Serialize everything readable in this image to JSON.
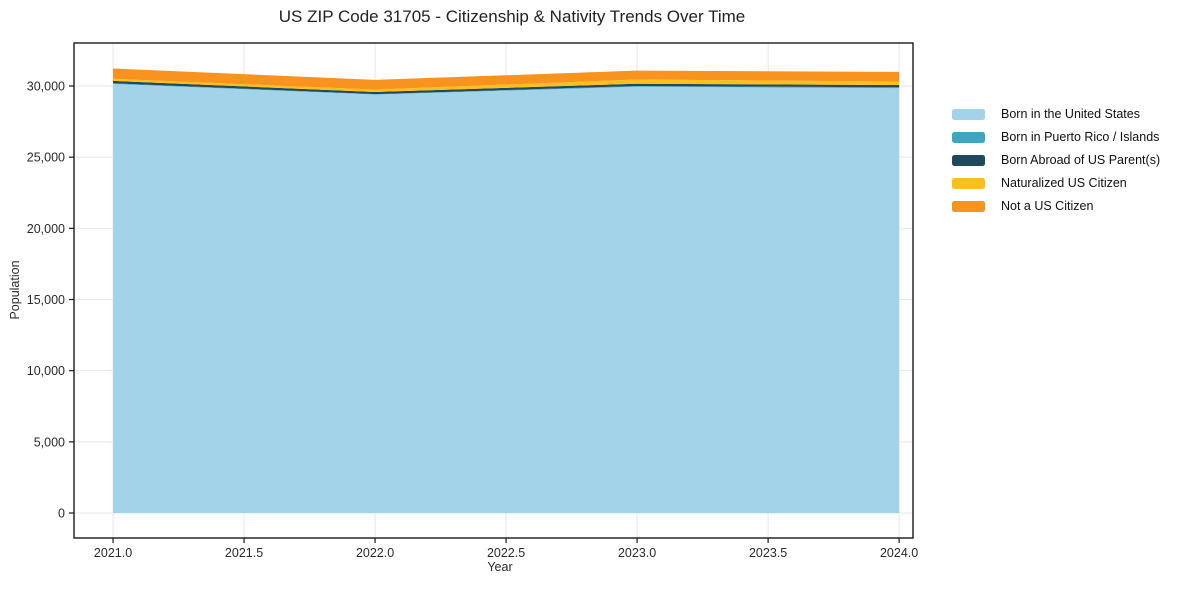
{
  "chart_data": {
    "type": "area",
    "stacked": true,
    "title": "US ZIP Code 31705 - Citizenship & Nativity Trends Over Time",
    "xlabel": "Year",
    "ylabel": "Population",
    "x": [
      2021,
      2022,
      2023,
      2024
    ],
    "series": [
      {
        "name": "Born in the United States",
        "color": "#a3d3e8",
        "values": [
          30150,
          29400,
          29950,
          29850
        ]
      },
      {
        "name": "Born in Puerto Rico / Islands",
        "color": "#3fa5c0",
        "values": [
          40,
          30,
          50,
          60
        ]
      },
      {
        "name": "Born Abroad of US Parent(s)",
        "color": "#204a5c",
        "values": [
          170,
          150,
          160,
          160
        ]
      },
      {
        "name": "Naturalized US Citizen",
        "color": "#fcbf1b",
        "values": [
          150,
          170,
          300,
          240
        ]
      },
      {
        "name": "Not a US Citizen",
        "color": "#f7931e",
        "values": [
          720,
          680,
          620,
          680
        ]
      }
    ],
    "xticks": [
      2021.0,
      2021.5,
      2022.0,
      2022.5,
      2023.0,
      2023.5,
      2024.0
    ],
    "xtick_labels": [
      "2021.0",
      "2021.5",
      "2022.0",
      "2022.5",
      "2023.0",
      "2023.5",
      "2024.0"
    ],
    "yticks": [
      0,
      5000,
      10000,
      15000,
      20000,
      25000,
      30000
    ],
    "ytick_labels": [
      "0",
      "5,000",
      "10,000",
      "15,000",
      "20,000",
      "25,000",
      "30,000"
    ],
    "xlim": [
      2020.851,
      2024.053
    ],
    "ylim": [
      -1756,
      33022
    ],
    "grid": true,
    "legend_position": "right-outside",
    "colors": {
      "background": "#ffffff",
      "grid": "#e7e7e7",
      "axis": "#1a1a1a",
      "tick_text": "#2a2a2a"
    }
  }
}
